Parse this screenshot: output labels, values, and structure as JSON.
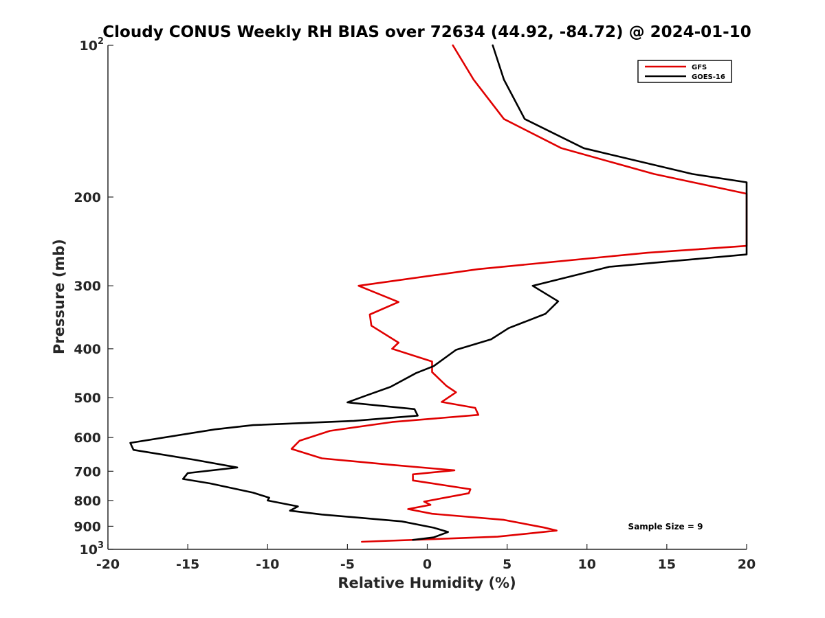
{
  "chart_data": {
    "type": "line",
    "title": "Cloudy CONUS Weekly RH BIAS over 72634 (44.92, -84.72) @ 2024-01-10",
    "xlabel": "Relative Humidity (%)",
    "ylabel": "Pressure (mb)",
    "xlim": [
      -20,
      20
    ],
    "ylim": [
      100,
      1000
    ],
    "y_scale": "log",
    "y_reversed": true,
    "x_ticks": [
      -20,
      -15,
      -10,
      -5,
      0,
      5,
      10,
      15,
      20
    ],
    "x_tick_labels": [
      "-20",
      "-15",
      "-10",
      "-5",
      "0",
      "5",
      "10",
      "15",
      "20"
    ],
    "y_ticks": [
      {
        "value": 100,
        "label": "10",
        "sup": "2"
      },
      {
        "value": 200,
        "label": "200",
        "sup": ""
      },
      {
        "value": 300,
        "label": "300",
        "sup": ""
      },
      {
        "value": 400,
        "label": "400",
        "sup": ""
      },
      {
        "value": 500,
        "label": "500",
        "sup": ""
      },
      {
        "value": 600,
        "label": "600",
        "sup": ""
      },
      {
        "value": 700,
        "label": "700",
        "sup": ""
      },
      {
        "value": 800,
        "label": "800",
        "sup": ""
      },
      {
        "value": 900,
        "label": "900",
        "sup": ""
      },
      {
        "value": 1000,
        "label": "10",
        "sup": "3"
      }
    ],
    "grid": false,
    "legend_position": "top-right",
    "annotation": "Sample Size = 9",
    "series": [
      {
        "name": "GFS",
        "color": "#e00000",
        "points": [
          [
            1.6,
            100
          ],
          [
            2.9,
            117
          ],
          [
            4.8,
            140
          ],
          [
            8.4,
            160
          ],
          [
            14.2,
            180
          ],
          [
            20,
            197
          ],
          [
            20,
            250
          ],
          [
            13.8,
            258
          ],
          [
            3.2,
            278
          ],
          [
            -4.3,
            300
          ],
          [
            -1.8,
            323
          ],
          [
            -3.6,
            342
          ],
          [
            -3.5,
            360
          ],
          [
            -1.8,
            389
          ],
          [
            -2.2,
            400
          ],
          [
            0.3,
            424
          ],
          [
            0.3,
            445
          ],
          [
            1.2,
            474
          ],
          [
            1.8,
            488
          ],
          [
            0.9,
            510
          ],
          [
            3.0,
            524
          ],
          [
            3.2,
            541
          ],
          [
            -2.2,
            559
          ],
          [
            -6.1,
            582
          ],
          [
            -8.0,
            609
          ],
          [
            -8.5,
            632
          ],
          [
            -6.6,
            660
          ],
          [
            -2.2,
            680
          ],
          [
            1.7,
            697
          ],
          [
            -0.9,
            710
          ],
          [
            -0.9,
            730
          ],
          [
            2.7,
            760
          ],
          [
            2.6,
            774
          ],
          [
            -0.2,
            804
          ],
          [
            0.2,
            816
          ],
          [
            -1.2,
            832
          ],
          [
            0.3,
            850
          ],
          [
            4.8,
            874
          ],
          [
            7.3,
            905
          ],
          [
            8.1,
            918
          ],
          [
            4.4,
            944
          ],
          [
            -4.1,
            966
          ]
        ]
      },
      {
        "name": "GOES-16",
        "color": "#000000",
        "points": [
          [
            4.1,
            100
          ],
          [
            4.8,
            117
          ],
          [
            6.1,
            140
          ],
          [
            9.8,
            160
          ],
          [
            16.6,
            180
          ],
          [
            20,
            187
          ],
          [
            20,
            260
          ],
          [
            11.4,
            275
          ],
          [
            6.6,
            300
          ],
          [
            8.2,
            322
          ],
          [
            7.4,
            341
          ],
          [
            5.1,
            364
          ],
          [
            4.0,
            383
          ],
          [
            1.8,
            402
          ],
          [
            0.4,
            433
          ],
          [
            -0.7,
            447
          ],
          [
            -2.3,
            476
          ],
          [
            -3.8,
            495
          ],
          [
            -5.0,
            511
          ],
          [
            -0.8,
            527
          ],
          [
            -0.6,
            543
          ],
          [
            -4.6,
            556
          ],
          [
            -10.9,
            567
          ],
          [
            -13.3,
            578
          ],
          [
            -18.6,
            615
          ],
          [
            -18.4,
            635
          ],
          [
            -14.6,
            664
          ],
          [
            -11.9,
            688
          ],
          [
            -15.0,
            706
          ],
          [
            -15.3,
            725
          ],
          [
            -13.6,
            740
          ],
          [
            -10.9,
            772
          ],
          [
            -9.9,
            790
          ],
          [
            -10.0,
            800
          ],
          [
            -8.1,
            822
          ],
          [
            -8.6,
            838
          ],
          [
            -6.6,
            853
          ],
          [
            -1.6,
            880
          ],
          [
            0.4,
            906
          ],
          [
            1.3,
            924
          ],
          [
            0.4,
            947
          ],
          [
            -0.9,
            958
          ]
        ]
      }
    ]
  }
}
